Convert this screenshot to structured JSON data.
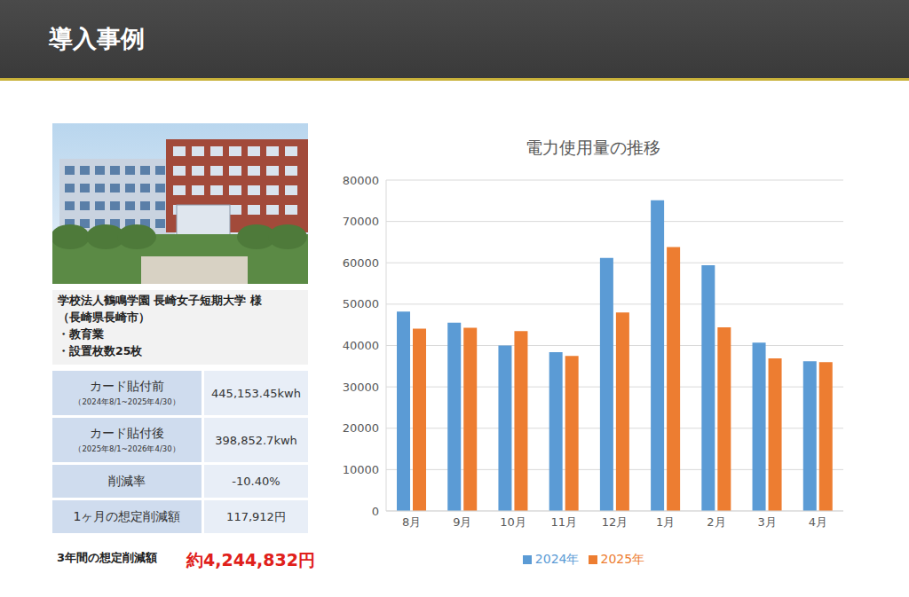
{
  "header": {
    "title": "導入事例"
  },
  "case": {
    "name": "学校法人鶴鳴学園 長崎女子短期大学 様",
    "location": "（長崎県長崎市）",
    "items": [
      "・教育業",
      "・設置枚数25枚"
    ]
  },
  "table": {
    "rows": [
      [
        "カード貼付前",
        "（2024年8/1~2025年4/30）",
        "445,153.45kwh"
      ],
      [
        "カード貼付後",
        "（2025年8/1~2026年4/30）",
        "398,852.7kwh"
      ],
      [
        "削減率",
        null,
        "-10.40%"
      ],
      [
        "1ヶ月の想定削減額",
        null,
        "117,912円"
      ]
    ]
  },
  "total": {
    "label": "3年間の想定削減額",
    "value": "約4,244,832円"
  },
  "chart_data": {
    "type": "bar",
    "title": "電力使用量の推移",
    "categories": [
      "8月",
      "9月",
      "10月",
      "11月",
      "12月",
      "1月",
      "2月",
      "3月",
      "4月"
    ],
    "series": [
      {
        "name": "2024年",
        "color": "#5b9bd5",
        "values": [
          48200,
          45500,
          40000,
          38400,
          61200,
          75100,
          59400,
          40700,
          36200
        ]
      },
      {
        "name": "2025年",
        "color": "#ed7d31",
        "values": [
          44100,
          44300,
          43500,
          37500,
          48000,
          63800,
          44400,
          36900,
          36000
        ]
      }
    ],
    "ylim": [
      0,
      80000
    ],
    "yticks": [
      0,
      10000,
      20000,
      30000,
      40000,
      50000,
      60000,
      70000,
      80000
    ],
    "grid": true,
    "legend": "bottom"
  }
}
